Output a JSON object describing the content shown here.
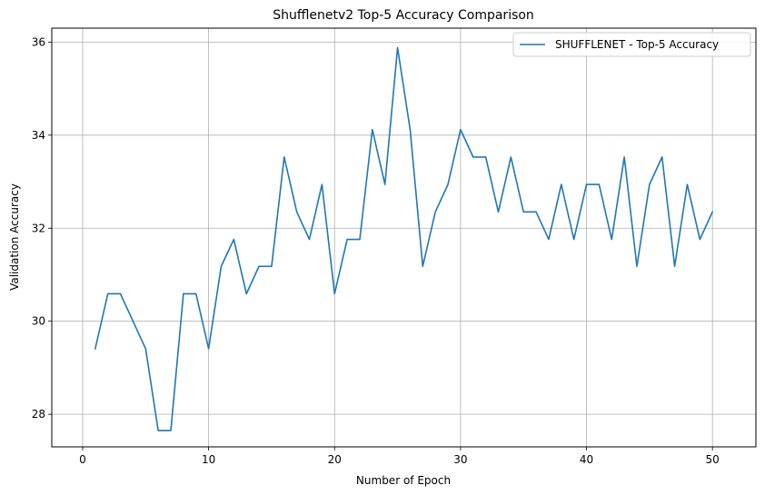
{
  "chart_data": {
    "type": "line",
    "title": "Shufflenetv2 Top-5 Accuracy Comparison",
    "xlabel": "Number of Epoch",
    "ylabel": "Validation Accuracy",
    "xlim": [
      -2.45,
      53.45
    ],
    "ylim": [
      27.3,
      36.3
    ],
    "xticks": [
      0,
      10,
      20,
      30,
      40,
      50
    ],
    "yticks": [
      28,
      30,
      32,
      34,
      36
    ],
    "grid": true,
    "legend_position": "top-right",
    "series": [
      {
        "name": "SHUFFLENET - Top-5 Accuracy",
        "color": "#1f77b4",
        "x": [
          1,
          2,
          3,
          4,
          5,
          6,
          7,
          8,
          9,
          10,
          11,
          12,
          13,
          14,
          15,
          16,
          17,
          18,
          19,
          20,
          21,
          22,
          23,
          24,
          25,
          26,
          27,
          28,
          29,
          30,
          31,
          32,
          33,
          34,
          35,
          36,
          37,
          38,
          39,
          40,
          41,
          42,
          43,
          44,
          45,
          46,
          47,
          48,
          49,
          50
        ],
        "y": [
          29.41,
          30.59,
          30.59,
          30.0,
          29.41,
          27.65,
          27.65,
          30.59,
          30.59,
          29.41,
          31.18,
          31.76,
          30.59,
          31.18,
          31.18,
          33.53,
          32.35,
          31.76,
          32.94,
          30.59,
          31.76,
          31.76,
          34.12,
          32.94,
          35.88,
          34.12,
          31.18,
          32.35,
          32.94,
          34.12,
          33.53,
          33.53,
          32.35,
          33.53,
          32.35,
          32.35,
          31.76,
          32.94,
          31.76,
          32.94,
          32.94,
          31.76,
          33.53,
          31.18,
          32.94,
          33.53,
          31.18,
          32.94,
          31.76,
          32.35
        ]
      }
    ]
  }
}
